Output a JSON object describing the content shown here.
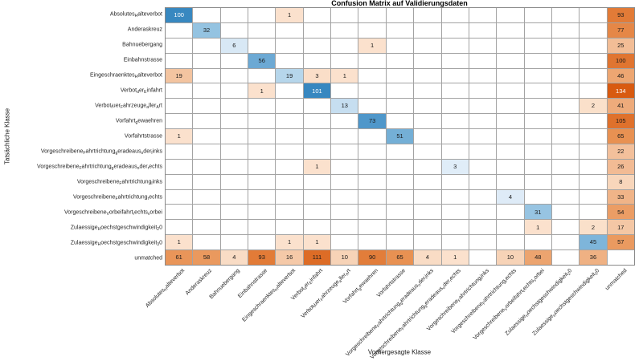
{
  "chart_data": {
    "type": "heatmap",
    "title": "Confusion Matrix auf Validierungsdaten",
    "xlabel": "Vorhergesagte Klasse",
    "ylabel": "Tatsächliche Klasse",
    "classes": [
      "Absolutes_Halteverbot",
      "Anderaskreuz",
      "Bahnuebergang",
      "Einbahnstrasse",
      "Eingeschraenktes_Halteverbot",
      "Verbot_der_Einfahrt",
      "Verbot_fuer_Fahrzeuge_aller_Art",
      "Vorfahrt_gewaehren",
      "Vorfahrtstrasse",
      "Vorgeschreibene_Fahrtrichtung_geradeaus_oder_links",
      "Vorgeschreibene_Fahrtrichtung_geradeaus_oder_rechts",
      "Vorgeschreibene_Fahrtrichtung_links",
      "Vorgeschreibene_Fahrtrichtung_rechts",
      "Vorgeschreibene_Vorbeifahrt_rechts_vorbei",
      "Zulaessige_Hoechstgeschwindigkeit_20",
      "Zulaessige_Hoechstgeschwindigkeit_30",
      "unmatched"
    ],
    "matrix": [
      [
        100,
        0,
        0,
        0,
        1,
        0,
        0,
        0,
        0,
        0,
        0,
        0,
        0,
        0,
        0,
        0,
        93
      ],
      [
        0,
        32,
        0,
        0,
        0,
        0,
        0,
        0,
        0,
        0,
        0,
        0,
        0,
        0,
        0,
        0,
        77
      ],
      [
        0,
        0,
        6,
        0,
        0,
        0,
        0,
        1,
        0,
        0,
        0,
        0,
        0,
        0,
        0,
        0,
        25
      ],
      [
        0,
        0,
        0,
        56,
        0,
        0,
        0,
        0,
        0,
        0,
        0,
        0,
        0,
        0,
        0,
        0,
        100
      ],
      [
        19,
        0,
        0,
        0,
        19,
        3,
        1,
        0,
        0,
        0,
        0,
        0,
        0,
        0,
        0,
        0,
        46
      ],
      [
        0,
        0,
        0,
        1,
        0,
        101,
        0,
        0,
        0,
        0,
        0,
        0,
        0,
        0,
        0,
        0,
        134
      ],
      [
        0,
        0,
        0,
        0,
        0,
        0,
        13,
        0,
        0,
        0,
        0,
        0,
        0,
        0,
        0,
        2,
        41
      ],
      [
        0,
        0,
        0,
        0,
        0,
        0,
        0,
        73,
        0,
        0,
        0,
        0,
        0,
        0,
        0,
        0,
        105
      ],
      [
        1,
        0,
        0,
        0,
        0,
        0,
        0,
        0,
        51,
        0,
        0,
        0,
        0,
        0,
        0,
        0,
        65
      ],
      [
        0,
        0,
        0,
        0,
        0,
        0,
        0,
        0,
        0,
        0,
        0,
        0,
        0,
        0,
        0,
        0,
        22
      ],
      [
        0,
        0,
        0,
        0,
        0,
        1,
        0,
        0,
        0,
        0,
        3,
        0,
        0,
        0,
        0,
        0,
        26
      ],
      [
        0,
        0,
        0,
        0,
        0,
        0,
        0,
        0,
        0,
        0,
        0,
        0,
        0,
        0,
        0,
        0,
        8
      ],
      [
        0,
        0,
        0,
        0,
        0,
        0,
        0,
        0,
        0,
        0,
        0,
        0,
        4,
        0,
        0,
        0,
        33
      ],
      [
        0,
        0,
        0,
        0,
        0,
        0,
        0,
        0,
        0,
        0,
        0,
        0,
        0,
        31,
        0,
        0,
        54
      ],
      [
        0,
        0,
        0,
        0,
        0,
        0,
        0,
        0,
        0,
        0,
        0,
        0,
        0,
        1,
        0,
        2,
        17
      ],
      [
        1,
        0,
        0,
        0,
        1,
        1,
        0,
        0,
        0,
        0,
        0,
        0,
        0,
        0,
        0,
        45,
        57
      ],
      [
        61,
        58,
        4,
        93,
        16,
        111,
        10,
        90,
        65,
        4,
        1,
        0,
        10,
        48,
        0,
        36,
        0
      ]
    ],
    "diagonal_colormap": "Blues",
    "offdiagonal_colormap": "Oranges",
    "grid": true,
    "colors": {
      "blues_anchors": [
        [
          0,
          "#e8f1fa"
        ],
        [
          32,
          "#94c3e1"
        ],
        [
          73,
          "#4f97ca"
        ],
        [
          101,
          "#3787c0"
        ]
      ],
      "oranges_anchors": [
        [
          0,
          "#fbe3cf"
        ],
        [
          20,
          "#f3c29e"
        ],
        [
          65,
          "#e89152"
        ],
        [
          134,
          "#d85a10"
        ]
      ],
      "white_text_threshold_blue": 85,
      "white_text_threshold_orange": 114,
      "grid_line": "#a3a3a3",
      "outer_border": "#8a8a8a",
      "cell_text": "#1a1a1a",
      "empty_cell": "#ffffff"
    }
  }
}
